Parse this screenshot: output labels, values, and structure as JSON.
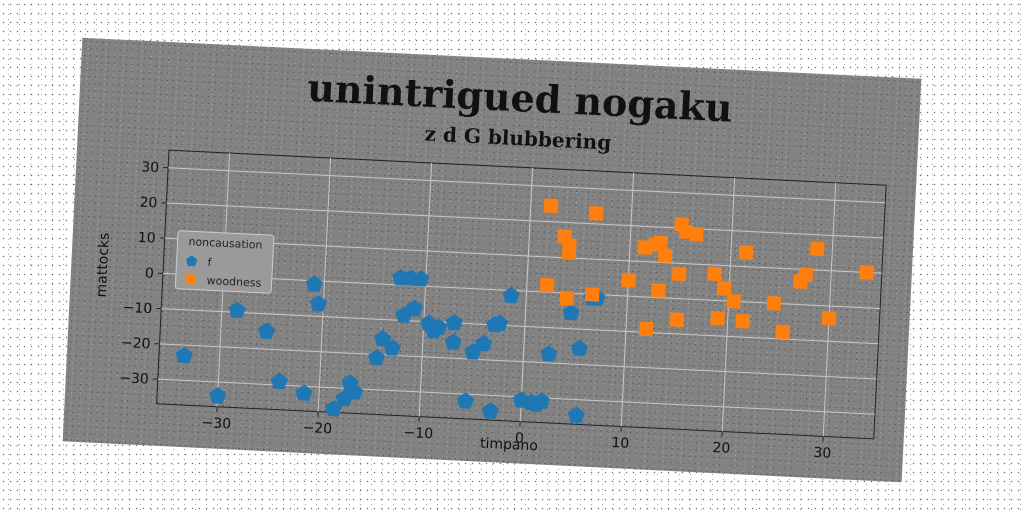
{
  "chart_data": {
    "type": "scatter",
    "title": "unintrigued nogaku",
    "subtitle": "z d G blubbering",
    "xlabel": "timpano",
    "ylabel": "mattocks",
    "xlim": [
      -36,
      35
    ],
    "ylim": [
      -37,
      35
    ],
    "xticks": [
      -30,
      -20,
      -10,
      0,
      10,
      20,
      30
    ],
    "yticks": [
      -30,
      -20,
      -10,
      0,
      10,
      20,
      30
    ],
    "grid": true,
    "legend": {
      "title": "noncausation",
      "placement": "center-left"
    },
    "series": [
      {
        "name": "f",
        "color": "#1f77b4",
        "marker": "pentagon",
        "points": [
          [
            -33.5,
            -23
          ],
          [
            -30,
            -34
          ],
          [
            -28.5,
            -9.5
          ],
          [
            -25.5,
            -15
          ],
          [
            -24,
            -29
          ],
          [
            -21.5,
            -32
          ],
          [
            -21,
            -1
          ],
          [
            -20.5,
            -6.5
          ],
          [
            -18.5,
            -36
          ],
          [
            -17.5,
            -33
          ],
          [
            -17,
            -28.5
          ],
          [
            -16.5,
            -31
          ],
          [
            -14.5,
            -21
          ],
          [
            -14,
            -15.5
          ],
          [
            -13,
            -18
          ],
          [
            -12.5,
            2
          ],
          [
            -12,
            -8.5
          ],
          [
            -11.5,
            2
          ],
          [
            -11,
            -6.5
          ],
          [
            -10.5,
            2
          ],
          [
            -9.5,
            -10.5
          ],
          [
            -9,
            -12.5
          ],
          [
            -8.5,
            -11.5
          ],
          [
            -7,
            -15.5
          ],
          [
            -7,
            -10
          ],
          [
            -5,
            -18
          ],
          [
            -4,
            -15.5
          ],
          [
            -5.5,
            -32
          ],
          [
            -3,
            -10
          ],
          [
            -3,
            -34.5
          ],
          [
            -2.5,
            -9.5
          ],
          [
            -1.5,
            -1.5
          ],
          [
            0,
            -31
          ],
          [
            1,
            -31.5
          ],
          [
            1.5,
            -32
          ],
          [
            2,
            -31
          ],
          [
            2.5,
            -17.5
          ],
          [
            4.5,
            -5.5
          ],
          [
            5.5,
            -34.5
          ],
          [
            5.5,
            -15.5
          ],
          [
            6.5,
            -1
          ],
          [
            7,
            -1
          ]
        ]
      },
      {
        "name": "woodness",
        "color": "#ff7f0e",
        "marker": "square",
        "points": [
          [
            2,
            24.5
          ],
          [
            2,
            2
          ],
          [
            3.5,
            16
          ],
          [
            4,
            13.5
          ],
          [
            4,
            11.5
          ],
          [
            4,
            -1.5
          ],
          [
            6.5,
            23
          ],
          [
            6.5,
            0
          ],
          [
            10,
            4.5
          ],
          [
            11.5,
            14
          ],
          [
            12,
            -9
          ],
          [
            12.5,
            15
          ],
          [
            13,
            15.5
          ],
          [
            13,
            2
          ],
          [
            13.5,
            12
          ],
          [
            15,
            21
          ],
          [
            15,
            7
          ],
          [
            15,
            -6
          ],
          [
            15.5,
            19
          ],
          [
            16.5,
            18.5
          ],
          [
            18.5,
            7.5
          ],
          [
            19,
            -5
          ],
          [
            19.5,
            3.5
          ],
          [
            20.5,
            0
          ],
          [
            21.5,
            14
          ],
          [
            21.5,
            -5.5
          ],
          [
            24.5,
            0
          ],
          [
            25.5,
            -8
          ],
          [
            27,
            6.5
          ],
          [
            27.5,
            8.5
          ],
          [
            28.5,
            16
          ],
          [
            30,
            -3.5
          ],
          [
            33.5,
            10
          ]
        ]
      }
    ]
  }
}
